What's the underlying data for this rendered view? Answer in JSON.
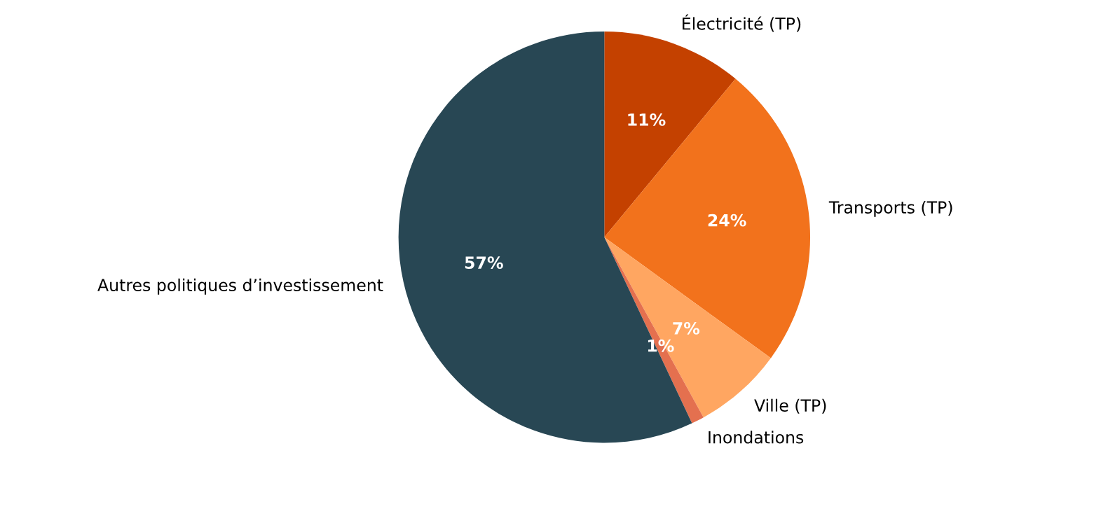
{
  "chart_data": {
    "type": "pie",
    "categories": [
      "Électricité (TP)",
      "Transports (TP)",
      "Ville (TP)",
      "Inondations",
      "Autres politiques d’investissement"
    ],
    "values": [
      11,
      24,
      7,
      1,
      57
    ],
    "colors": [
      "#c44100",
      "#f2721c",
      "#ffa661",
      "#e4704f",
      "#284754"
    ],
    "value_labels": [
      "11%",
      "24%",
      "7%",
      "1%",
      "57%"
    ]
  }
}
